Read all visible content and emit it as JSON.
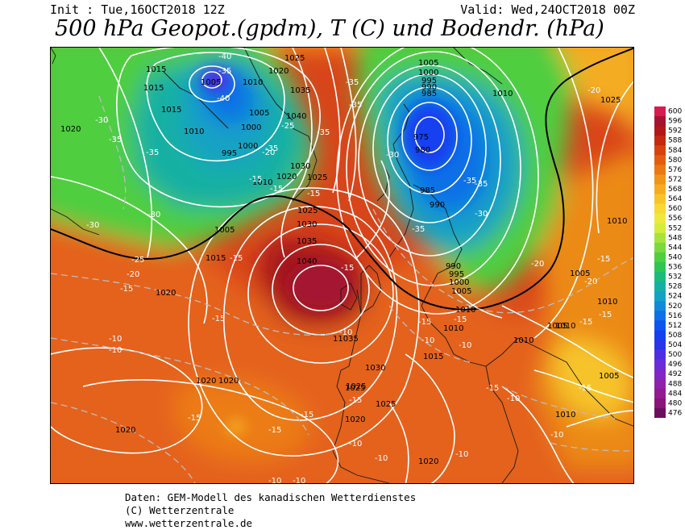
{
  "header": {
    "init": "Init : Tue,16OCT2018 12Z",
    "valid": "Valid: Wed,24OCT2018 00Z",
    "title": "500 hPa Geopot.(gpdm), T (C) und Bodendr. (hPa)"
  },
  "legend": {
    "levels": [
      "600",
      "596",
      "592",
      "588",
      "584",
      "580",
      "576",
      "572",
      "568",
      "564",
      "560",
      "556",
      "552",
      "548",
      "544",
      "540",
      "536",
      "532",
      "528",
      "524",
      "520",
      "516",
      "512",
      "508",
      "504",
      "500",
      "496",
      "492",
      "488",
      "484",
      "480",
      "476"
    ],
    "colors": [
      "#d71b4f",
      "#a51333",
      "#b0181a",
      "#c52a10",
      "#d6430e",
      "#e25d0f",
      "#ea7813",
      "#f0941a",
      "#f4ad22",
      "#f7c52b",
      "#f8d936",
      "#eee940",
      "#d5ec3c",
      "#a8e33d",
      "#7ad93e",
      "#4fce3f",
      "#2ec555",
      "#1cbb7a",
      "#14b0a3",
      "#12a2c5",
      "#1089db",
      "#0f6fe7",
      "#0e55ee",
      "#1440f0",
      "#2a34e8",
      "#4d2fe2",
      "#6a2bd8",
      "#8026c4",
      "#8f22ab",
      "#921b91",
      "#8a1477",
      "#6b0f5d"
    ]
  },
  "map": {
    "pressure_labels": [
      {
        "text": "1015"
      },
      {
        "text": "1005"
      },
      {
        "text": "1010"
      },
      {
        "text": "1025"
      },
      {
        "text": "1020"
      },
      {
        "text": "1015"
      },
      {
        "text": "1010"
      },
      {
        "text": "1035"
      },
      {
        "text": "1040"
      },
      {
        "text": "1005"
      },
      {
        "text": "1000"
      },
      {
        "text": "995"
      },
      {
        "text": "1000"
      },
      {
        "text": "1030"
      },
      {
        "text": "1020"
      },
      {
        "text": "1025"
      },
      {
        "text": "1010"
      },
      {
        "text": "1015"
      },
      {
        "text": "1020"
      },
      {
        "text": "1005"
      },
      {
        "text": "1000"
      },
      {
        "text": "995"
      },
      {
        "text": "990"
      },
      {
        "text": "985"
      },
      {
        "text": "975"
      },
      {
        "text": "980"
      },
      {
        "text": "985"
      },
      {
        "text": "990"
      },
      {
        "text": "1010"
      },
      {
        "text": "1025"
      },
      {
        "text": "1010"
      },
      {
        "text": "1025"
      },
      {
        "text": "1030"
      },
      {
        "text": "1035"
      },
      {
        "text": "1040"
      },
      {
        "text": "1005"
      },
      {
        "text": "1015"
      },
      {
        "text": "1020"
      },
      {
        "text": "11035"
      },
      {
        "text": "1030"
      },
      {
        "text": "1025"
      },
      {
        "text": "1025"
      },
      {
        "text": "1020"
      },
      {
        "text": "1020"
      },
      {
        "text": "1020"
      },
      {
        "text": "1020"
      },
      {
        "text": "990"
      },
      {
        "text": "995"
      },
      {
        "text": "1000"
      },
      {
        "text": "1005"
      },
      {
        "text": "1010"
      },
      {
        "text": "1010"
      },
      {
        "text": "1015"
      },
      {
        "text": "1010"
      },
      {
        "text": "1005"
      },
      {
        "text": "1010"
      },
      {
        "text": "1005"
      },
      {
        "text": "1010"
      },
      {
        "text": "1005"
      },
      {
        "text": "1010"
      },
      {
        "text": "1020"
      },
      {
        "text": "1025"
      }
    ],
    "temp_labels": [
      {
        "text": "-40"
      },
      {
        "text": "-35"
      },
      {
        "text": "-40"
      },
      {
        "text": "-30"
      },
      {
        "text": "-35"
      },
      {
        "text": "-35"
      },
      {
        "text": "-30"
      },
      {
        "text": "-35"
      },
      {
        "text": "-30"
      },
      {
        "text": "-25"
      },
      {
        "text": "-20"
      },
      {
        "text": "-15"
      },
      {
        "text": "-20"
      },
      {
        "text": "-25"
      },
      {
        "text": "-15"
      },
      {
        "text": "-15"
      },
      {
        "text": "-15"
      },
      {
        "text": "-10"
      },
      {
        "text": "-10"
      },
      {
        "text": "-15"
      },
      {
        "text": "-15"
      },
      {
        "text": "-10"
      },
      {
        "text": "-35"
      },
      {
        "text": "-35"
      },
      {
        "text": "-30"
      },
      {
        "text": "-35"
      },
      {
        "text": "-35"
      },
      {
        "text": "-35"
      },
      {
        "text": "-30"
      },
      {
        "text": "-35"
      },
      {
        "text": "-20"
      },
      {
        "text": "-20"
      },
      {
        "text": "-15"
      },
      {
        "text": "-20"
      },
      {
        "text": "-15"
      },
      {
        "text": "-15"
      },
      {
        "text": "-15"
      },
      {
        "text": "-10"
      },
      {
        "text": "-15"
      },
      {
        "text": "-10"
      },
      {
        "text": "-10"
      },
      {
        "text": "-10"
      },
      {
        "text": "-15"
      },
      {
        "text": "-15"
      },
      {
        "text": "-10"
      },
      {
        "text": "-15"
      },
      {
        "text": "-10"
      },
      {
        "text": "-15"
      },
      {
        "text": "-10"
      },
      {
        "text": "-15"
      },
      {
        "text": "-15"
      },
      {
        "text": "-10"
      },
      {
        "text": "-10"
      },
      {
        "text": "-15"
      }
    ]
  },
  "credits": {
    "line1": "Daten: GEM-Modell des kanadischen Wetterdienstes",
    "line2": "(C) Wetterzentrale",
    "line3": "www.wetterzentrale.de"
  }
}
